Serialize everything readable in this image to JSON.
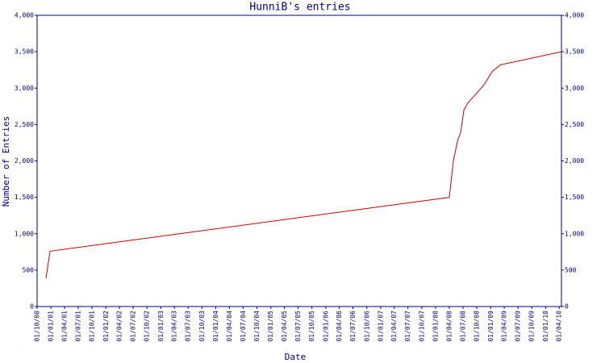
{
  "chart_data": {
    "type": "line",
    "title": "HunniB's entries",
    "x_label": "Date",
    "y_label": "Number of Entries",
    "x": [
      "2000-11-29",
      "2000-12-26",
      "2008-04-01",
      "2008-04-28",
      "2008-05-25",
      "2008-06-16",
      "2008-07-07",
      "2008-08-03",
      "2008-09-26",
      "2008-11-19",
      "2009-01-12",
      "2009-03-07",
      "2010-04-16"
    ],
    "values": [
      390,
      760,
      1500,
      2000,
      2270,
      2400,
      2700,
      2800,
      2920,
      3050,
      3230,
      3320,
      3500
    ],
    "color": "#cc0000",
    "grid": false,
    "xlim": [
      "2000-10-01",
      "2010-04-16"
    ],
    "xticks": [
      {
        "value": "2000-10-01",
        "label": "01/10/00"
      },
      {
        "value": "2001-01-01",
        "label": "01/01/01"
      },
      {
        "value": "2001-04-01",
        "label": "01/04/01"
      },
      {
        "value": "2001-07-01",
        "label": "01/07/01"
      },
      {
        "value": "2001-10-01",
        "label": "01/10/01"
      },
      {
        "value": "2002-01-01",
        "label": "01/01/02"
      },
      {
        "value": "2002-04-01",
        "label": "01/04/02"
      },
      {
        "value": "2002-07-01",
        "label": "01/07/02"
      },
      {
        "value": "2002-10-01",
        "label": "01/10/02"
      },
      {
        "value": "2003-01-01",
        "label": "01/01/03"
      },
      {
        "value": "2003-04-01",
        "label": "01/04/03"
      },
      {
        "value": "2003-07-01",
        "label": "01/07/03"
      },
      {
        "value": "2003-10-01",
        "label": "01/10/03"
      },
      {
        "value": "2004-01-01",
        "label": "01/01/04"
      },
      {
        "value": "2004-04-01",
        "label": "01/04/04"
      },
      {
        "value": "2004-07-01",
        "label": "01/07/04"
      },
      {
        "value": "2004-10-01",
        "label": "01/10/04"
      },
      {
        "value": "2005-01-01",
        "label": "01/01/05"
      },
      {
        "value": "2005-04-01",
        "label": "01/04/05"
      },
      {
        "value": "2005-07-01",
        "label": "01/07/05"
      },
      {
        "value": "2005-10-01",
        "label": "01/10/05"
      },
      {
        "value": "2006-01-01",
        "label": "01/01/06"
      },
      {
        "value": "2006-04-01",
        "label": "01/04/06"
      },
      {
        "value": "2006-07-01",
        "label": "01/07/06"
      },
      {
        "value": "2006-10-01",
        "label": "01/10/06"
      },
      {
        "value": "2007-01-01",
        "label": "01/01/07"
      },
      {
        "value": "2007-04-01",
        "label": "01/04/07"
      },
      {
        "value": "2007-07-01",
        "label": "01/07/07"
      },
      {
        "value": "2007-10-01",
        "label": "01/10/07"
      },
      {
        "value": "2008-01-01",
        "label": "01/01/08"
      },
      {
        "value": "2008-04-01",
        "label": "01/04/08"
      },
      {
        "value": "2008-07-01",
        "label": "01/07/08"
      },
      {
        "value": "2008-10-01",
        "label": "01/10/08"
      },
      {
        "value": "2009-01-01",
        "label": "01/01/09"
      },
      {
        "value": "2009-04-01",
        "label": "01/04/09"
      },
      {
        "value": "2009-07-01",
        "label": "01/07/09"
      },
      {
        "value": "2009-10-01",
        "label": "01/10/09"
      },
      {
        "value": "2010-01-01",
        "label": "01/01/10"
      },
      {
        "value": "2010-04-01",
        "label": "01/04/10"
      }
    ],
    "ylim": [
      0,
      4000
    ],
    "yticks": [
      0,
      500,
      {
        "value": 1000,
        "label": "1,000"
      },
      {
        "value": 1500,
        "label": "1,500"
      },
      {
        "value": 2000,
        "label": "2,000"
      },
      {
        "value": 2500,
        "label": "2,500"
      },
      {
        "value": 3000,
        "label": "3,000"
      },
      {
        "value": 3500,
        "label": "3,500"
      },
      {
        "value": 4000,
        "label": "4,000"
      }
    ]
  }
}
